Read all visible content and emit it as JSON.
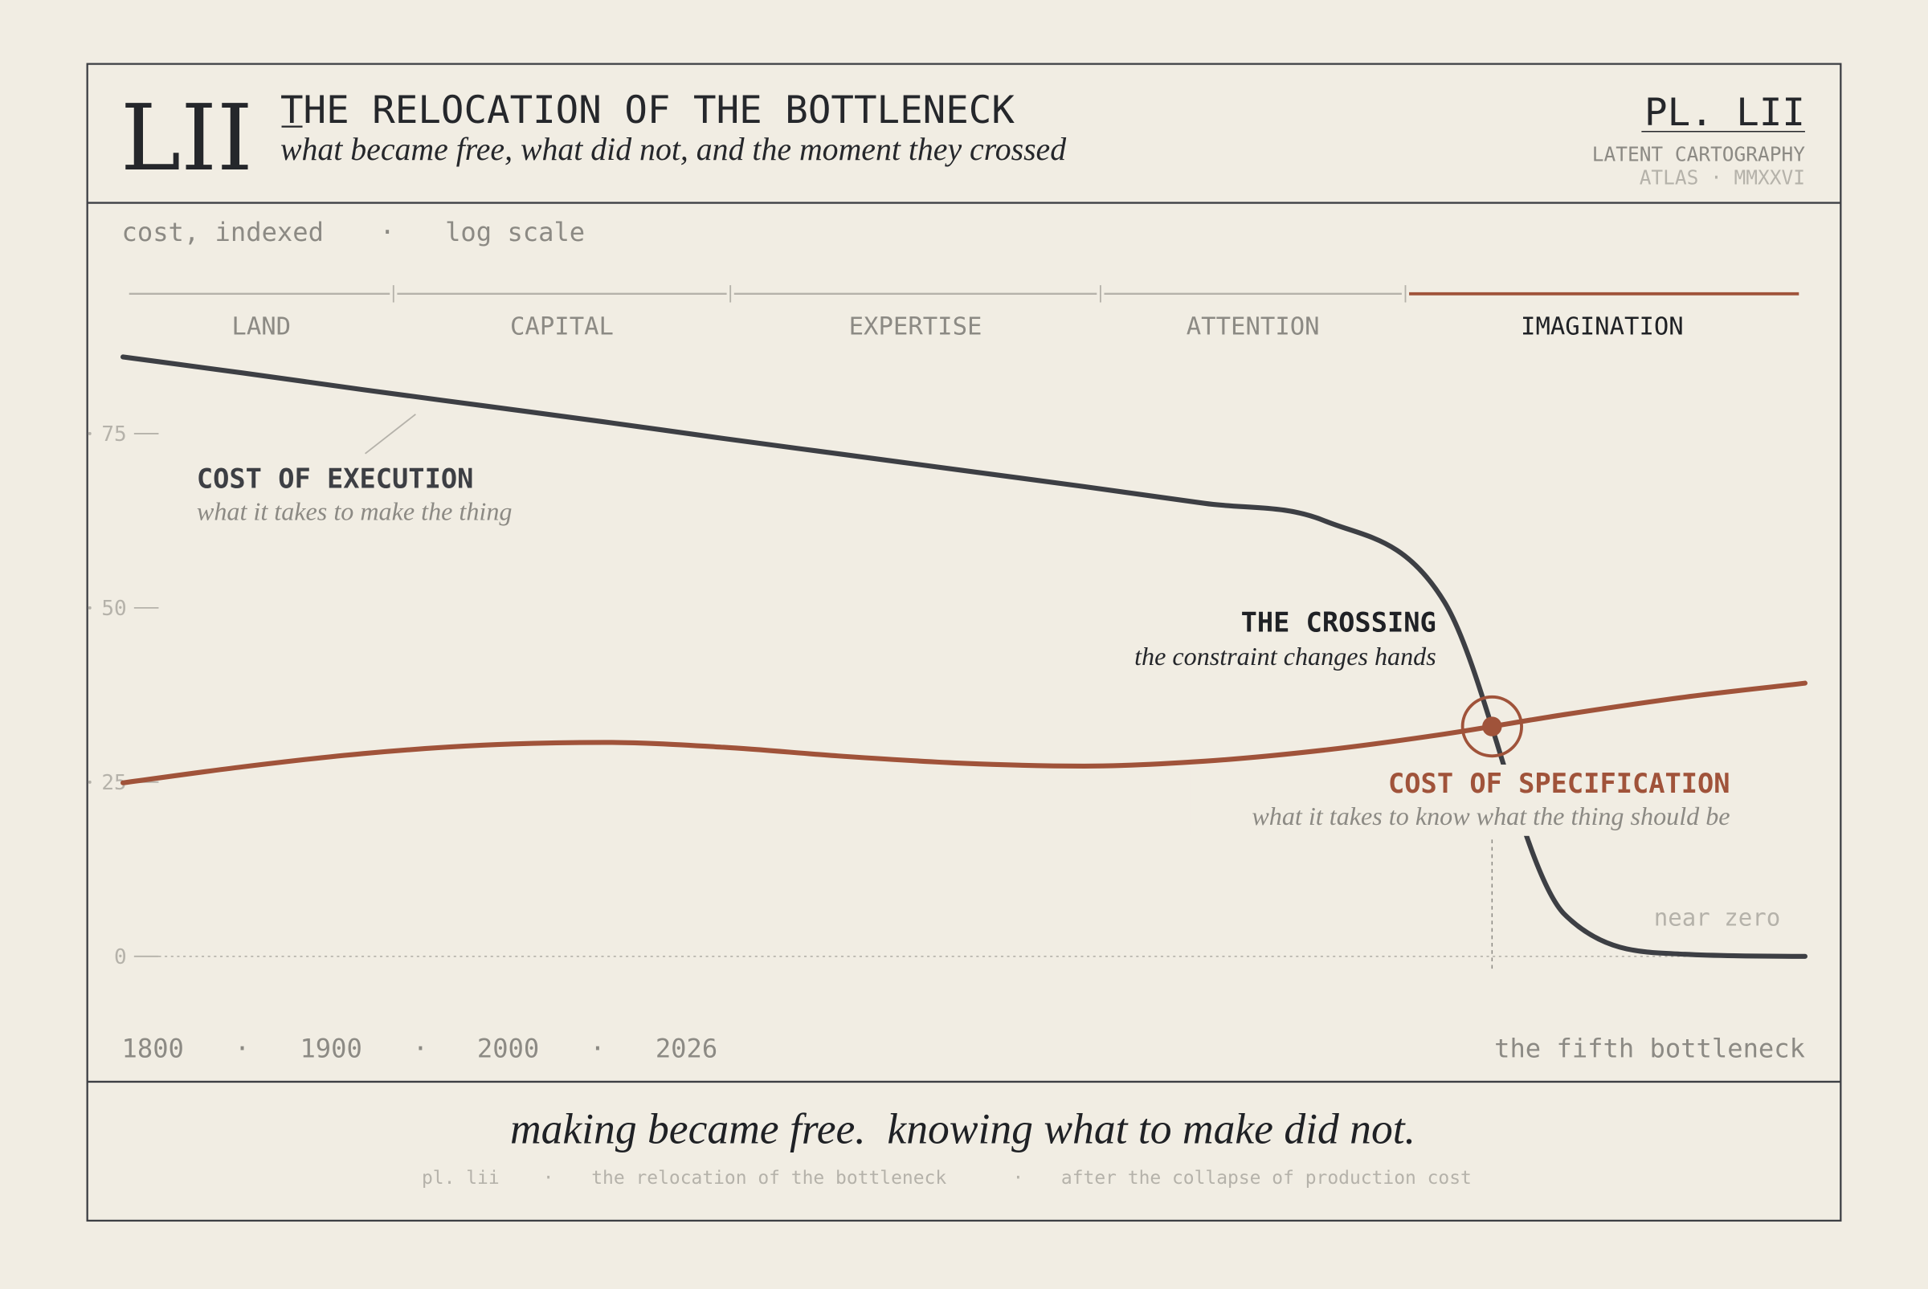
{
  "header": {
    "numeral": "LII",
    "title": "THE RELOCATION OF THE BOTTLENECK",
    "subtitle": "what became free, what did not, and the moment they crossed",
    "plate": "PL. LII",
    "series_name": "LATENT CARTOGRAPHY",
    "atlas": "ATLAS · MMXXVI"
  },
  "chart_data": {
    "type": "line",
    "axis_note": [
      "cost, indexed",
      "·",
      "log scale"
    ],
    "eras": [
      "LAND",
      "CAPITAL",
      "EXPERTISE",
      "ATTENTION",
      "IMAGINATION"
    ],
    "highlight_era": 4,
    "categories": [
      null,
      null,
      null,
      null,
      null,
      null,
      null,
      null,
      null,
      null,
      null,
      null,
      null,
      null,
      null
    ],
    "series": [
      {
        "name": "COST OF EXECUTION",
        "note": "what it takes to make the thing",
        "color": "#3d3f44",
        "values": [
          86,
          83.7,
          81.3,
          79,
          76.7,
          74.3,
          72,
          69.7,
          67.4,
          65,
          62.5,
          50.8,
          6,
          0.3,
          0
        ]
      },
      {
        "name": "COST OF SPECIFICATION",
        "note": "what it takes to know what the thing should be",
        "color": "#a0533a",
        "values": [
          24.9,
          27.2,
          29.1,
          30.3,
          30.7,
          30,
          28.7,
          27.7,
          27.3,
          28,
          29.6,
          31.9,
          34.7,
          37.2,
          39.2
        ]
      }
    ],
    "ylim": [
      0,
      100
    ],
    "yticks": [
      0,
      25,
      50,
      75
    ],
    "crossing": {
      "title": "THE CROSSING",
      "note": "the constraint changes hands"
    },
    "floor_note": "near zero",
    "timeline": [
      "1800",
      "·",
      "1900",
      "·",
      "2000",
      "·",
      "2026"
    ],
    "timeline_note": "the fifth bottleneck"
  },
  "footer": {
    "motto": "making became free.  knowing what to make did not.",
    "credits": [
      "pl. lii",
      "·",
      "the relocation of the bottleneck",
      "·",
      "after the collapse of production cost"
    ]
  }
}
